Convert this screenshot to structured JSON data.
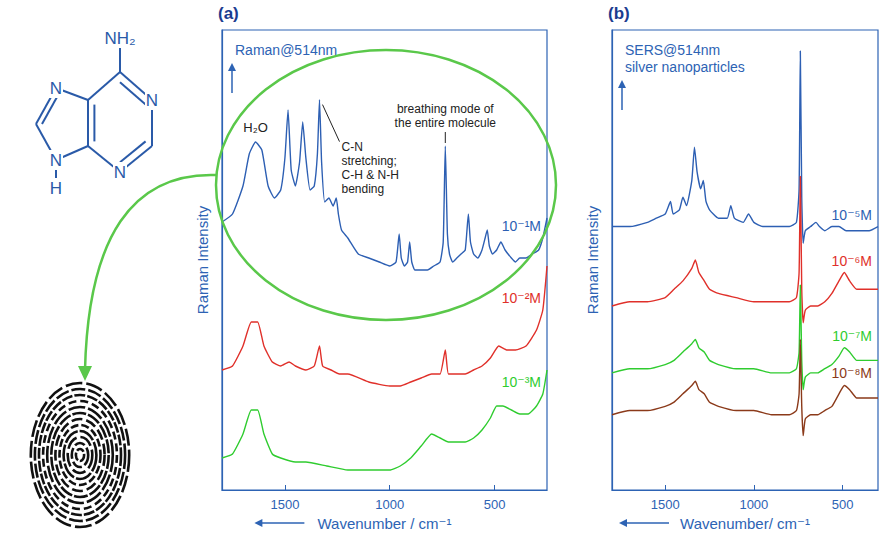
{
  "chart_data": [
    {
      "type": "line",
      "panel": "(a)",
      "title": "Raman@514nm",
      "x_label": "Wavenumber / cm⁻¹",
      "y_label": "Raman Intensity",
      "xlim": [
        1800,
        250
      ],
      "xticks": [
        1500,
        1000,
        500
      ],
      "ylim": [
        0,
        11.5
      ],
      "tick_labels": "x",
      "series": [
        {
          "name": "10⁻¹M",
          "color": "#2d5fb3",
          "x": [
            1800,
            1750,
            1700,
            1670,
            1640,
            1610,
            1580,
            1550,
            1520,
            1500,
            1485,
            1470,
            1450,
            1430,
            1415,
            1400,
            1380,
            1360,
            1345,
            1335,
            1325,
            1310,
            1290,
            1270,
            1255,
            1245,
            1230,
            1200,
            1150,
            1100,
            1050,
            1000,
            970,
            955,
            945,
            930,
            915,
            905,
            895,
            880,
            850,
            820,
            790,
            760,
            745,
            735,
            725,
            715,
            700,
            680,
            660,
            640,
            625,
            615,
            600,
            580,
            560,
            545,
            535,
            525,
            510,
            490,
            470,
            450,
            420,
            400,
            380,
            350,
            320,
            290,
            270,
            250
          ],
          "values": [
            6.7,
            6.9,
            7.6,
            8.4,
            8.7,
            8.5,
            7.6,
            7.3,
            7.5,
            8.3,
            9.5,
            8.0,
            7.6,
            8.2,
            9.2,
            8.3,
            7.5,
            7.6,
            8.4,
            9.76,
            8.2,
            7.2,
            7.3,
            7.1,
            7.3,
            6.9,
            6.5,
            6.3,
            5.9,
            5.8,
            5.7,
            5.6,
            5.7,
            6.4,
            5.8,
            5.6,
            5.7,
            6.2,
            5.7,
            5.5,
            5.5,
            5.5,
            5.6,
            5.7,
            6.2,
            8.6,
            6.4,
            5.9,
            5.7,
            5.8,
            5.9,
            6.0,
            6.9,
            6.2,
            5.9,
            5.8,
            6.0,
            6.3,
            6.5,
            6.1,
            5.9,
            6.0,
            6.2,
            6.0,
            5.8,
            5.7,
            5.8,
            5.8,
            5.9,
            6.0,
            6.3,
            6.8
          ]
        },
        {
          "name": "10⁻²M",
          "color": "#e0302a",
          "x": [
            1800,
            1750,
            1700,
            1660,
            1630,
            1600,
            1560,
            1520,
            1480,
            1450,
            1400,
            1360,
            1335,
            1320,
            1280,
            1240,
            1200,
            1100,
            1000,
            950,
            900,
            850,
            800,
            760,
            735,
            720,
            680,
            640,
            600,
            560,
            520,
            480,
            440,
            400,
            350,
            300,
            270,
            250
          ],
          "values": [
            3.0,
            3.1,
            3.6,
            4.2,
            4.2,
            3.6,
            3.2,
            3.1,
            3.2,
            3.1,
            3.0,
            3.1,
            3.6,
            3.1,
            3.0,
            2.9,
            2.9,
            2.7,
            2.6,
            2.6,
            2.7,
            2.8,
            2.9,
            2.9,
            3.5,
            2.9,
            2.9,
            2.9,
            3.0,
            3.1,
            3.3,
            3.6,
            3.5,
            3.5,
            3.6,
            4.0,
            4.5,
            5.6
          ]
        },
        {
          "name": "10⁻³M",
          "color": "#2fcc2f",
          "x": [
            1800,
            1750,
            1700,
            1660,
            1630,
            1600,
            1560,
            1520,
            1450,
            1400,
            1300,
            1200,
            1100,
            1000,
            950,
            900,
            850,
            800,
            760,
            720,
            680,
            640,
            600,
            560,
            520,
            490,
            460,
            420,
            380,
            340,
            300,
            270,
            250
          ],
          "values": [
            0.8,
            0.9,
            1.4,
            2.0,
            2.0,
            1.4,
            0.9,
            0.8,
            0.7,
            0.7,
            0.6,
            0.5,
            0.5,
            0.5,
            0.6,
            0.8,
            1.1,
            1.4,
            1.3,
            1.2,
            1.2,
            1.2,
            1.3,
            1.5,
            1.8,
            2.1,
            2.1,
            2.0,
            1.9,
            1.9,
            2.1,
            2.4,
            3.0
          ]
        }
      ],
      "annotations": [
        {
          "text": "H₂O",
          "x": 1640
        },
        {
          "text": "breathing mode of the entire molecule",
          "x": 735
        },
        {
          "text": "C-N stretching; C-H & N-H bending",
          "x": 1335
        }
      ]
    },
    {
      "type": "line",
      "panel": "(b)",
      "title": "SERS@514nm silver nanoparticles",
      "x_label": "Wavenumber/ cm⁻¹",
      "y_label": "Raman Intensity",
      "xlim": [
        1800,
        300
      ],
      "xticks": [
        1500,
        1000,
        500
      ],
      "ylim": [
        0,
        11
      ],
      "tick_labels": "x",
      "series": [
        {
          "name": "10⁻⁵M",
          "color": "#2d5fb3",
          "x": [
            1800,
            1700,
            1600,
            1550,
            1500,
            1470,
            1455,
            1420,
            1400,
            1380,
            1350,
            1335,
            1320,
            1300,
            1285,
            1270,
            1250,
            1200,
            1150,
            1130,
            1110,
            1060,
            1030,
            1000,
            950,
            900,
            850,
            800,
            760,
            745,
            738,
            730,
            722,
            710,
            680,
            650,
            630,
            600,
            560,
            520,
            480,
            440,
            400,
            350,
            300
          ],
          "values": [
            6.3,
            6.3,
            6.4,
            6.5,
            6.6,
            6.9,
            6.6,
            6.7,
            7.0,
            6.8,
            7.4,
            8.2,
            7.6,
            7.2,
            7.4,
            6.9,
            6.7,
            6.5,
            6.5,
            6.8,
            6.5,
            6.4,
            6.6,
            6.4,
            6.3,
            6.3,
            6.3,
            6.3,
            6.4,
            7.2,
            10.5,
            7.0,
            5.9,
            6.2,
            6.3,
            6.4,
            6.3,
            6.2,
            6.3,
            6.3,
            6.2,
            6.2,
            6.2,
            6.2,
            6.3
          ]
        },
        {
          "name": "10⁻⁶M",
          "color": "#e0302a",
          "x": [
            1800,
            1700,
            1600,
            1500,
            1450,
            1400,
            1350,
            1330,
            1310,
            1280,
            1250,
            1200,
            1100,
            1000,
            900,
            800,
            760,
            745,
            738,
            730,
            722,
            710,
            680,
            640,
            600,
            560,
            520,
            490,
            460,
            420,
            380,
            340,
            300
          ],
          "values": [
            4.4,
            4.5,
            4.5,
            4.6,
            4.8,
            5.0,
            5.3,
            5.5,
            5.2,
            5.0,
            4.8,
            4.7,
            4.6,
            4.5,
            4.5,
            4.5,
            4.6,
            5.2,
            7.5,
            4.8,
            4.0,
            4.3,
            4.4,
            4.4,
            4.5,
            4.7,
            5.0,
            5.2,
            5.0,
            4.8,
            4.8,
            4.8,
            4.8
          ]
        },
        {
          "name": "10⁻⁷M",
          "color": "#2fcc2f",
          "x": [
            1800,
            1700,
            1600,
            1500,
            1450,
            1400,
            1350,
            1330,
            1310,
            1280,
            1250,
            1200,
            1100,
            1000,
            900,
            800,
            760,
            745,
            738,
            730,
            722,
            710,
            680,
            640,
            600,
            560,
            520,
            490,
            460,
            420,
            380,
            340,
            300
          ],
          "values": [
            2.8,
            2.9,
            2.9,
            3.0,
            3.1,
            3.3,
            3.5,
            3.6,
            3.4,
            3.3,
            3.1,
            3.0,
            2.9,
            2.9,
            2.8,
            2.8,
            2.9,
            3.3,
            4.9,
            3.1,
            2.4,
            2.7,
            2.8,
            2.8,
            2.9,
            3.0,
            3.2,
            3.4,
            3.3,
            3.1,
            3.1,
            3.1,
            3.1
          ]
        },
        {
          "name": "10⁻⁸M",
          "color": "#8b3a1a",
          "x": [
            1800,
            1700,
            1600,
            1500,
            1450,
            1400,
            1350,
            1330,
            1310,
            1280,
            1250,
            1200,
            1100,
            1000,
            900,
            800,
            760,
            745,
            738,
            730,
            722,
            710,
            680,
            640,
            600,
            560,
            520,
            490,
            460,
            420,
            380,
            340,
            300
          ],
          "values": [
            1.8,
            1.9,
            1.9,
            2.0,
            2.1,
            2.3,
            2.5,
            2.6,
            2.4,
            2.3,
            2.1,
            2.0,
            1.9,
            1.9,
            1.8,
            1.8,
            1.9,
            2.3,
            3.6,
            2.0,
            1.3,
            1.7,
            1.8,
            1.8,
            1.9,
            2.0,
            2.3,
            2.5,
            2.4,
            2.2,
            2.2,
            2.2,
            2.2
          ]
        }
      ]
    }
  ],
  "molecule": {
    "labels": [
      "NH₂",
      "N",
      "N",
      "N",
      "N",
      "H"
    ]
  }
}
